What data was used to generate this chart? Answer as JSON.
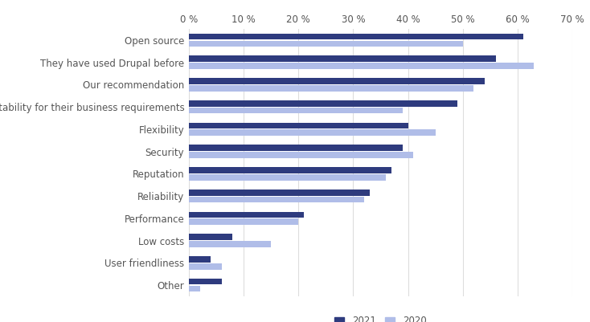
{
  "categories": [
    "Open source",
    "They have used Drupal before",
    "Our recommendation",
    "Suitability for their business requirements",
    "Flexibility",
    "Security",
    "Reputation",
    "Reliability",
    "Performance",
    "Low costs",
    "User friendliness",
    "Other"
  ],
  "values_2021": [
    61,
    56,
    54,
    49,
    40,
    39,
    37,
    33,
    21,
    8,
    4,
    6
  ],
  "values_2020": [
    50,
    63,
    52,
    39,
    45,
    41,
    36,
    32,
    20,
    15,
    6,
    2
  ],
  "color_2021": "#2e3b7e",
  "color_2020": "#b0bde8",
  "xlim": [
    0,
    70
  ],
  "xticks": [
    0,
    10,
    20,
    30,
    40,
    50,
    60,
    70
  ],
  "legend_labels": [
    "2021",
    "2020"
  ],
  "background_color": "#ffffff",
  "bar_height": 0.28,
  "bar_gap": 0.04,
  "tick_fontsize": 8.5,
  "label_fontsize": 8.5,
  "grid_color": "#dddddd",
  "text_color": "#555555"
}
